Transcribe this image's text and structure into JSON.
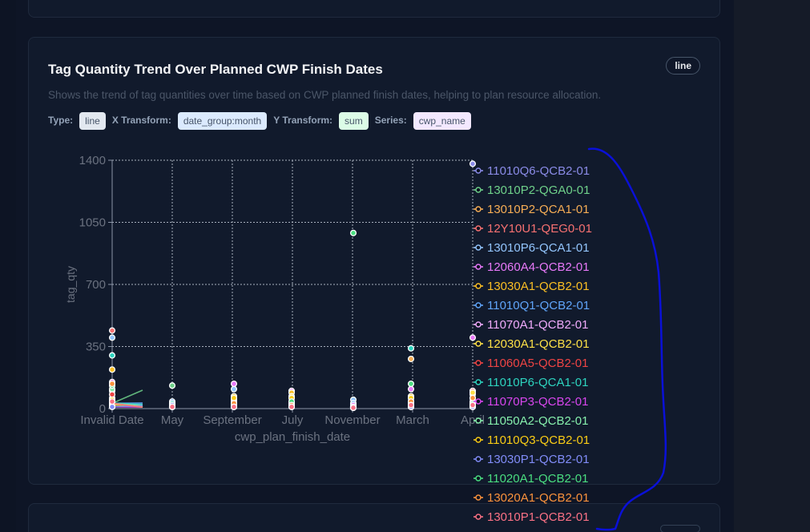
{
  "card": {
    "title": "Tag Quantity Trend Over Planned CWP Finish Dates",
    "type_badge": "line",
    "description": "Shows the trend of tag quantities over time based on CWP planned finish dates, helping to plan resource allocation.",
    "meta": {
      "type_label": "Type:",
      "type_value": "line",
      "x_label": "X Transform:",
      "x_value": "date_group:month",
      "y_label": "Y Transform:",
      "y_value": "sum",
      "series_label": "Series:",
      "series_value": "cwp_name"
    }
  },
  "chart_data": {
    "type": "line",
    "xlabel": "cwp_plan_finish_date",
    "ylabel": "tag_qty",
    "categories": [
      "Invalid Date",
      "May",
      "September",
      "July",
      "November",
      "March",
      "April"
    ],
    "ylim": [
      0,
      1400
    ],
    "yticks": [
      0,
      350,
      700,
      1050,
      1400
    ],
    "grid": true,
    "legend_position": "right",
    "series": [
      {
        "name": "11010Q6-QCB2-01",
        "color": "#8b8ce8",
        "values": [
          20,
          30,
          20,
          30,
          10,
          40,
          1380
        ]
      },
      {
        "name": "13010P2-QGA0-01",
        "color": "#6fd18a",
        "values": [
          30,
          130,
          10,
          20,
          5,
          20,
          10
        ]
      },
      {
        "name": "13010P2-QCA1-01",
        "color": "#f6ad55",
        "values": [
          40,
          20,
          30,
          60,
          10,
          280,
          40
        ]
      },
      {
        "name": "12Y10U1-QEG0-01",
        "color": "#f87171",
        "values": [
          440,
          10,
          20,
          10,
          5,
          60,
          100
        ]
      },
      {
        "name": "13010P6-QCA1-01",
        "color": "#93c5fd",
        "values": [
          400,
          30,
          110,
          30,
          50,
          20,
          30
        ]
      },
      {
        "name": "12060A4-QCB2-01",
        "color": "#e879f9",
        "values": [
          150,
          20,
          140,
          100,
          20,
          110,
          400
        ]
      },
      {
        "name": "13030A1-QCB2-01",
        "color": "#fbbf24",
        "values": [
          220,
          10,
          70,
          90,
          10,
          70,
          80
        ]
      },
      {
        "name": "11010Q1-QCB2-01",
        "color": "#60a5fa",
        "values": [
          100,
          40,
          50,
          40,
          30,
          30,
          20
        ]
      },
      {
        "name": "11070A1-QCB2-01",
        "color": "#f0abfc",
        "values": [
          60,
          10,
          30,
          20,
          10,
          40,
          60
        ]
      },
      {
        "name": "12030A1-QCB2-01",
        "color": "#fde047",
        "values": [
          20,
          20,
          50,
          70,
          10,
          10,
          90
        ]
      },
      {
        "name": "11060A5-QCB2-01",
        "color": "#ef4444",
        "values": [
          80,
          10,
          20,
          10,
          5,
          10,
          10
        ]
      },
      {
        "name": "11010P6-QCA1-01",
        "color": "#2dd4bf",
        "values": [
          300,
          30,
          40,
          30,
          10,
          340,
          60
        ]
      },
      {
        "name": "11070P3-QCB2-01",
        "color": "#d946ef",
        "values": [
          10,
          10,
          10,
          30,
          20,
          10,
          20
        ]
      },
      {
        "name": "11050A2-QCB2-01",
        "color": "#86efac",
        "values": [
          110,
          20,
          20,
          20,
          10,
          20,
          30
        ]
      },
      {
        "name": "11010Q3-QCB2-01",
        "color": "#facc15",
        "values": [
          50,
          10,
          60,
          60,
          10,
          60,
          10
        ]
      },
      {
        "name": "13030P1-QCB2-01",
        "color": "#818cf8",
        "values": [
          10,
          20,
          10,
          10,
          5,
          10,
          10
        ]
      },
      {
        "name": "11020A1-QCB2-01",
        "color": "#4ade80",
        "values": [
          130,
          10,
          20,
          40,
          990,
          140,
          20
        ]
      },
      {
        "name": "13020A1-QCB2-01",
        "color": "#fb923c",
        "values": [
          140,
          10,
          30,
          20,
          5,
          40,
          60
        ]
      },
      {
        "name": "13010P1-QCB2-01",
        "color": "#fb7185",
        "values": [
          40,
          10,
          10,
          10,
          5,
          20,
          20
        ]
      }
    ]
  }
}
